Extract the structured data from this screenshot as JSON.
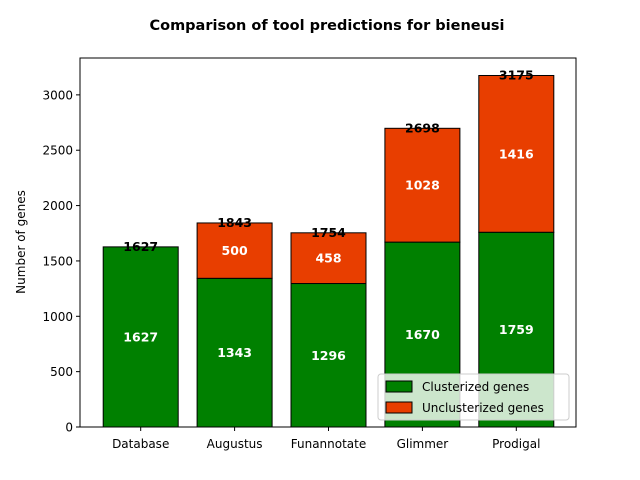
{
  "chart_data": {
    "type": "bar",
    "stacked": true,
    "title": "Comparison of tool predictions for bieneusi",
    "xlabel": "",
    "ylabel": "Number of genes",
    "categories": [
      "Database",
      "Augustus",
      "Funannotate",
      "Glimmer",
      "Prodigal"
    ],
    "series": [
      {
        "name": "Clusterized genes",
        "color": "#008000",
        "values": [
          1627,
          1343,
          1296,
          1670,
          1759
        ]
      },
      {
        "name": "Unclusterized genes",
        "color": "#e83e00",
        "values": [
          0,
          500,
          458,
          1028,
          1416
        ]
      }
    ],
    "totals": [
      1627,
      1843,
      1754,
      2698,
      3175
    ],
    "ylim": [
      0,
      3333
    ],
    "yticks": [
      0,
      500,
      1000,
      1500,
      2000,
      2500,
      3000
    ],
    "grid": false,
    "legend_position": "lower-right"
  }
}
